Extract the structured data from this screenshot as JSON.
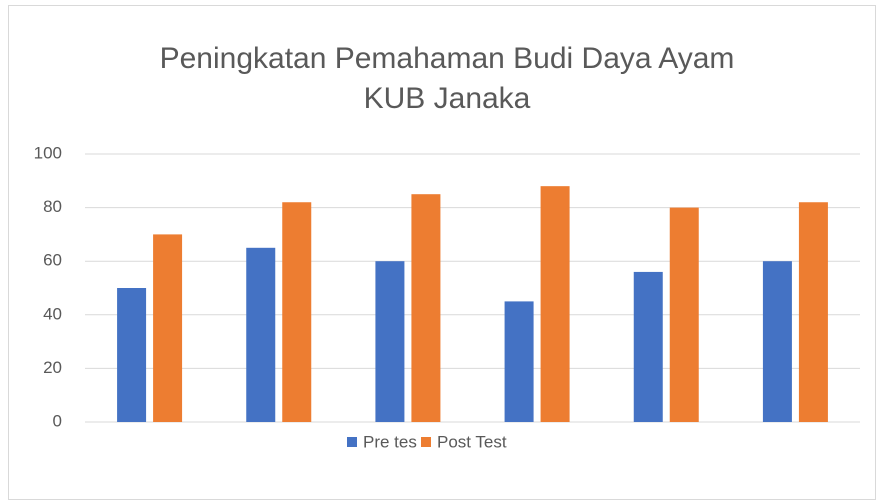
{
  "chart_data": {
    "type": "bar",
    "title": [
      "Peningkatan Pemahaman Budi Daya Ayam",
      "KUB Janaka"
    ],
    "categories": [
      null,
      null,
      null,
      null,
      null,
      null
    ],
    "series": [
      {
        "name": "Pre tes",
        "color": "#4472c4",
        "values": [
          50,
          65,
          60,
          45,
          56,
          60
        ]
      },
      {
        "name": "Post Test",
        "color": "#ed7d31",
        "values": [
          70,
          82,
          85,
          88,
          80,
          82
        ]
      }
    ],
    "ylim": [
      0,
      100
    ],
    "yticks": [
      0,
      20,
      40,
      60,
      80,
      100
    ],
    "grid": true,
    "legend": "bottom"
  }
}
